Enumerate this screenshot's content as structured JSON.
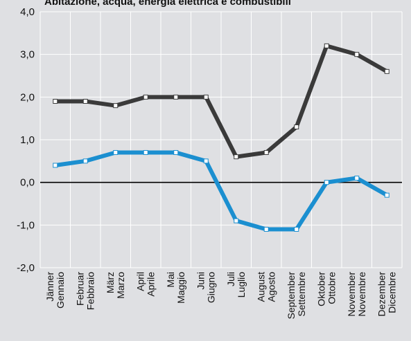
{
  "chart_data": {
    "type": "line",
    "title": "Abitazione, acqua, energia elettrica e combustibili",
    "xlabel": "",
    "ylabel": "",
    "ylim": [
      -2.0,
      4.0
    ],
    "yticks": [
      "4,0",
      "3,0",
      "2,0",
      "1,0",
      "0,0",
      "-1,0",
      "-2,0"
    ],
    "ytick_values": [
      4,
      3,
      2,
      1,
      0,
      -1,
      -2
    ],
    "grid": true,
    "categories": [
      [
        "Jänner",
        "Gennaio"
      ],
      [
        "Februar",
        "Febbraio"
      ],
      [
        "März",
        "Marzo"
      ],
      [
        "April",
        "Aprile"
      ],
      [
        "Mai",
        "Maggio"
      ],
      [
        "Juni",
        "Giugno"
      ],
      [
        "Juli",
        "Luglio"
      ],
      [
        "August",
        "Agosto"
      ],
      [
        "September",
        "Settembre"
      ],
      [
        "Oktober",
        "Ottobre"
      ],
      [
        "November",
        "Novembre"
      ],
      [
        "Dezember",
        "Dicembre"
      ]
    ],
    "series": [
      {
        "color": "#3a3a3a",
        "values": [
          1.9,
          1.9,
          1.8,
          2.0,
          2.0,
          2.0,
          0.6,
          0.7,
          1.3,
          3.2,
          3.0,
          2.6
        ]
      },
      {
        "color": "#1b8fd0",
        "values": [
          0.4,
          0.5,
          0.7,
          0.7,
          0.7,
          0.5,
          -0.9,
          -1.1,
          -1.1,
          0.0,
          0.1,
          -0.3
        ]
      }
    ],
    "colors": {
      "background": "#dfe0e3",
      "plot_area": "#dfe0e3",
      "grid": "#ffffff",
      "zero_line": "#000000",
      "marker_fill": "#ffffff"
    }
  }
}
